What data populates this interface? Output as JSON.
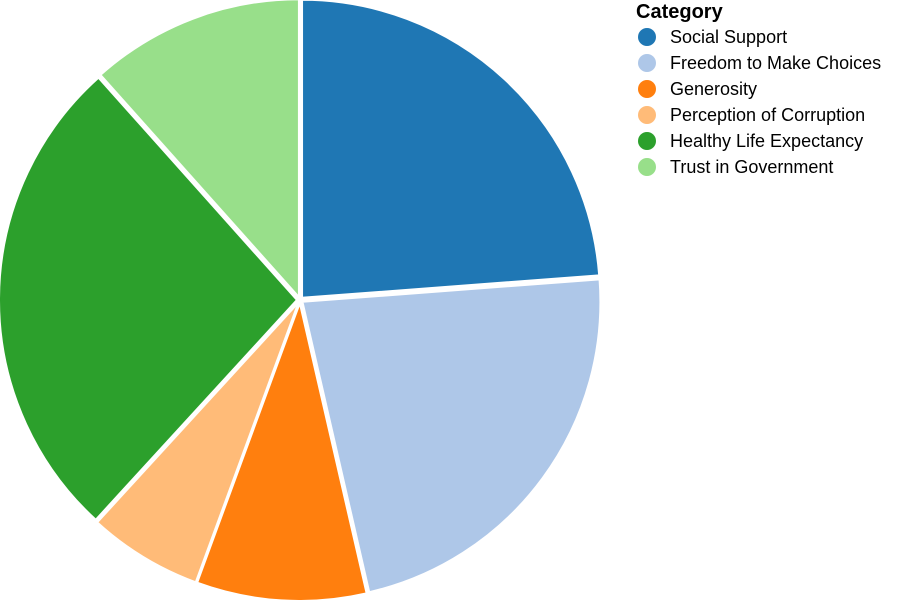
{
  "chart_data": {
    "type": "pie",
    "legend_title": "Category",
    "legend_position": "top-right",
    "slices": [
      {
        "label": "Social Support",
        "value": 23.8,
        "color": "#1f77b4"
      },
      {
        "label": "Freedom to Make Choices",
        "value": 22.6,
        "color": "#aec7e8"
      },
      {
        "label": "Generosity",
        "value": 9.2,
        "color": "#ff7f0e"
      },
      {
        "label": "Perception of Corruption",
        "value": 6.2,
        "color": "#ffbb78"
      },
      {
        "label": "Healthy Life Expectancy",
        "value": 26.6,
        "color": "#2ca02c"
      },
      {
        "label": "Trust in Government",
        "value": 11.6,
        "color": "#98df8a"
      }
    ]
  }
}
